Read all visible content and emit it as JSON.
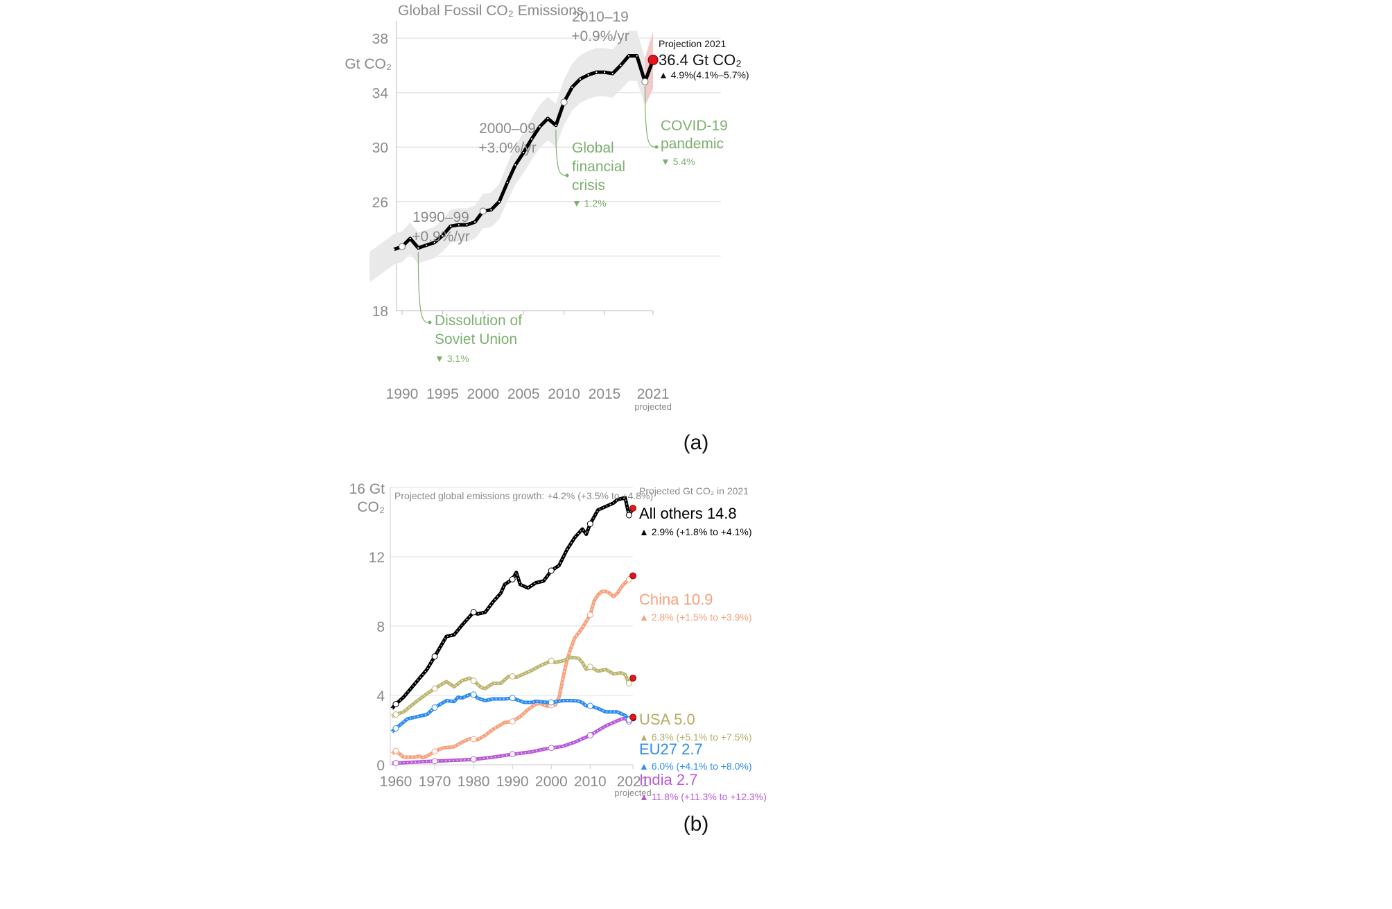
{
  "chart_data": [
    {
      "type": "line",
      "panel_caption": "(a)",
      "title": "Global Fossil CO₂ Emissions",
      "ylabel": "Gt CO₂",
      "ylim": [
        18,
        39
      ],
      "yticks": [
        18,
        26,
        30,
        34,
        38
      ],
      "ygrid": [
        22,
        26,
        30,
        34,
        38
      ],
      "xlim": [
        1989,
        2021
      ],
      "xticks": [
        "1990",
        "1995",
        "2000",
        "2005",
        "2010",
        "2015",
        "2021"
      ],
      "xtick_values": [
        1990,
        1995,
        2000,
        2005,
        2010,
        2015,
        2021
      ],
      "xtick_note": "projected",
      "uncertainty_pct": 5,
      "x": [
        1989,
        1990,
        1991,
        1992,
        1993,
        1994,
        1995,
        1996,
        1997,
        1998,
        1999,
        2000,
        2001,
        2002,
        2003,
        2004,
        2005,
        2006,
        2007,
        2008,
        2009,
        2010,
        2011,
        2012,
        2013,
        2014,
        2015,
        2016,
        2017,
        2018,
        2019,
        2020,
        2021
      ],
      "y": [
        22.5,
        22.7,
        23.3,
        22.6,
        22.8,
        23.0,
        23.5,
        24.2,
        24.3,
        24.3,
        24.5,
        25.3,
        25.4,
        26.0,
        27.4,
        28.7,
        29.6,
        30.6,
        31.5,
        32.1,
        31.6,
        33.3,
        34.4,
        35.0,
        35.3,
        35.5,
        35.5,
        35.4,
        36.0,
        36.7,
        36.7,
        34.8,
        36.4
      ],
      "open_markers": [
        1990,
        2000,
        2010,
        2020
      ],
      "projection": {
        "year": 2021,
        "value": 36.4,
        "range": [
          34.3,
          38.5
        ]
      },
      "colors": {
        "line": "#000000",
        "band": "#e9e9e9",
        "projection_band": "#f3c9c9",
        "projection_dot": "#e8141b",
        "event": "#7cb06e",
        "text": "#8a8a8a"
      },
      "period_labels": [
        {
          "period": "1990–99",
          "rate": "+0.9%/yr"
        },
        {
          "period": "2000–09",
          "rate": "+3.0%/yr"
        },
        {
          "period": "2010–19",
          "rate": "+0.9%/yr"
        }
      ],
      "events": [
        {
          "lines": [
            "Dissolution of",
            "Soviet Union"
          ],
          "change": "▼ 3.1%"
        },
        {
          "lines": [
            "Global",
            "financial",
            "crisis"
          ],
          "change": "▼ 1.2%"
        },
        {
          "lines": [
            "COVID-19",
            "pandemic"
          ],
          "change": "▼ 5.4%"
        }
      ],
      "projection_label": {
        "heading": "Projection 2021",
        "value": "36.4 Gt CO₂",
        "change": "▲ 4.9%(4.1%–5.7%)"
      }
    },
    {
      "type": "line",
      "panel_caption": "(b)",
      "ylabel": "16 Gt CO₂",
      "ylabel_lines": [
        "16 Gt",
        "CO₂"
      ],
      "ylim": [
        0,
        16
      ],
      "yticks": [
        "0",
        "4",
        "8",
        "12"
      ],
      "ytick_values": [
        0,
        4,
        8,
        12
      ],
      "ygrid": [
        4,
        8,
        12,
        16
      ],
      "xlim": [
        1959,
        2021
      ],
      "xticks": [
        "1960",
        "1970",
        "1980",
        "1990",
        "2000",
        "2010",
        "2021"
      ],
      "xtick_values": [
        1960,
        1970,
        1980,
        1990,
        2000,
        2010,
        2021
      ],
      "xtick_note": "projected",
      "note": "Projected global emissions growth: +4.2% (+3.5% to +4.8%)",
      "legend_heading": "Projected Gt CO₂ in 2021",
      "open_markers": [
        1960,
        1970,
        1980,
        1990,
        2000,
        2010,
        2020
      ],
      "series": [
        {
          "name": "All others",
          "label": "All others 14.8",
          "change": "▲ 2.9% (+1.8% to +4.1%)",
          "color": "#000000",
          "label_color": "#000000",
          "x": [
            1959,
            1960,
            1962,
            1965,
            1968,
            1970,
            1973,
            1975,
            1977,
            1980,
            1981,
            1983,
            1985,
            1987,
            1988,
            1990,
            1991,
            1992,
            1994,
            1996,
            1998,
            2000,
            2002,
            2004,
            2006,
            2008,
            2009,
            2010,
            2012,
            2014,
            2016,
            2017,
            2019,
            2020,
            2021
          ],
          "y": [
            3.24,
            3.5,
            3.9,
            4.7,
            5.5,
            6.25,
            7.4,
            7.5,
            8.05,
            8.8,
            8.7,
            8.8,
            9.4,
            9.9,
            10.4,
            10.7,
            11.1,
            10.4,
            10.2,
            10.5,
            10.6,
            11.2,
            11.5,
            12.4,
            13.1,
            13.6,
            13.3,
            13.9,
            14.7,
            14.9,
            15.1,
            15.3,
            15.4,
            14.4,
            14.8
          ]
        },
        {
          "name": "China",
          "label": "China 10.9",
          "change": "▲ 2.8% (+1.5% to +3.9%)",
          "color": "#f7a07c",
          "label_color": "#f7a07c",
          "x": [
            1959,
            1960,
            1962,
            1965,
            1966,
            1967,
            1968,
            1970,
            1972,
            1975,
            1977,
            1979,
            1980,
            1981,
            1983,
            1985,
            1988,
            1990,
            1992,
            1994,
            1996,
            1997,
            1999,
            2000,
            2001,
            2002,
            2003,
            2004,
            2005,
            2006,
            2008,
            2010,
            2011,
            2012,
            2013,
            2014,
            2015,
            2016,
            2017,
            2018,
            2019,
            2020,
            2021
          ],
          "y": [
            0.64,
            0.8,
            0.44,
            0.44,
            0.5,
            0.41,
            0.5,
            0.77,
            0.97,
            1.04,
            1.3,
            1.5,
            1.48,
            1.44,
            1.7,
            2.05,
            2.44,
            2.5,
            2.78,
            3.18,
            3.5,
            3.54,
            3.38,
            3.44,
            3.44,
            3.9,
            5.0,
            6.0,
            6.7,
            7.3,
            7.9,
            8.65,
            9.45,
            9.8,
            10.0,
            10.0,
            9.9,
            9.7,
            9.9,
            10.25,
            10.5,
            10.7,
            10.9
          ]
        },
        {
          "name": "USA",
          "label": "USA 5.0",
          "change": "▲ 6.3% (+5.1% to +7.5%)",
          "color": "#bdb570",
          "label_color": "#b5ad66",
          "x": [
            1959,
            1960,
            1962,
            1965,
            1968,
            1970,
            1973,
            1975,
            1977,
            1979,
            1980,
            1982,
            1983,
            1985,
            1987,
            1989,
            1990,
            1991,
            1995,
            1997,
            2000,
            2001,
            2003,
            2005,
            2007,
            2008,
            2009,
            2010,
            2012,
            2014,
            2016,
            2018,
            2019,
            2020,
            2021
          ],
          "y": [
            2.8,
            2.9,
            3.05,
            3.6,
            4.1,
            4.4,
            4.8,
            4.5,
            4.85,
            5.0,
            4.85,
            4.45,
            4.4,
            4.7,
            4.7,
            5.1,
            5.1,
            5.05,
            5.45,
            5.7,
            6.0,
            5.9,
            6.0,
            6.2,
            6.15,
            5.9,
            5.5,
            5.65,
            5.4,
            5.5,
            5.25,
            5.3,
            5.2,
            4.7,
            5.0
          ]
        },
        {
          "name": "EU27",
          "label": "EU27 2.7",
          "change": "▲ 6.0% (+4.1% to +8.0%)",
          "color": "#2d8cf0",
          "label_color": "#2d8cf0",
          "x": [
            1959,
            1960,
            1963,
            1966,
            1968,
            1970,
            1973,
            1975,
            1976,
            1977,
            1979,
            1980,
            1981,
            1983,
            1985,
            1988,
            1990,
            1993,
            1995,
            1996,
            1999,
            2000,
            2003,
            2005,
            2007,
            2008,
            2009,
            2010,
            2012,
            2014,
            2017,
            2019,
            2020,
            2021
          ],
          "y": [
            1.9,
            2.1,
            2.65,
            2.8,
            2.9,
            3.3,
            3.7,
            3.65,
            3.9,
            3.85,
            4.05,
            4.05,
            3.85,
            3.7,
            3.8,
            3.8,
            3.85,
            3.6,
            3.6,
            3.67,
            3.6,
            3.6,
            3.7,
            3.7,
            3.68,
            3.58,
            3.4,
            3.4,
            3.25,
            3.05,
            3.05,
            2.85,
            2.6,
            2.75
          ]
        },
        {
          "name": "India",
          "label": "India 2.7",
          "change": "▲ 11.8% (+11.3% to +12.3%)",
          "color": "#b95ad8",
          "label_color": "#b95ad8",
          "x": [
            1959,
            1960,
            1970,
            1980,
            1985,
            1990,
            1995,
            1998,
            2000,
            2003,
            2006,
            2008,
            2010,
            2012,
            2014,
            2016,
            2018,
            2019,
            2020,
            2021
          ],
          "y": [
            0.08,
            0.1,
            0.21,
            0.31,
            0.44,
            0.61,
            0.75,
            0.9,
            0.97,
            1.07,
            1.3,
            1.5,
            1.7,
            1.98,
            2.24,
            2.44,
            2.64,
            2.67,
            2.5,
            2.7
          ]
        }
      ],
      "projection_dot_color": "#e8141b"
    }
  ]
}
